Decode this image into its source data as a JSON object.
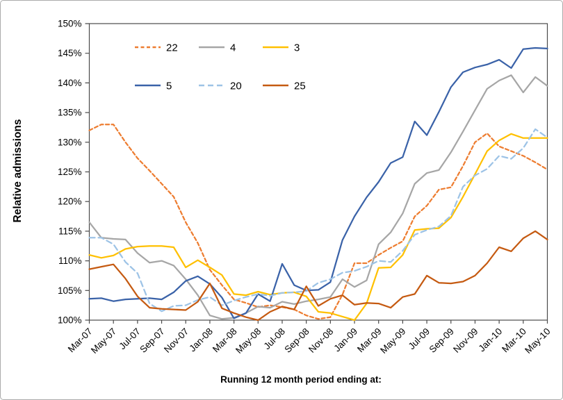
{
  "figure": {
    "background": "#FFFFFF",
    "border_color": "#AAAAAA",
    "axis_color": "#4A4A4A"
  },
  "chart_data": {
    "type": "line",
    "title": "",
    "xlabel": "Running 12 month period ending at:",
    "ylabel": "Relative admissions",
    "ylim": [
      100,
      150
    ],
    "y_tick_labels": [
      "100%",
      "105%",
      "110%",
      "115%",
      "120%",
      "125%",
      "130%",
      "135%",
      "140%",
      "145%",
      "150%"
    ],
    "x_label_every": 2,
    "grid": false,
    "legend_position": "inside-top-left",
    "legend_rows": [
      [
        "22",
        "4",
        "3"
      ],
      [
        "5",
        "20",
        "25"
      ]
    ],
    "categories": [
      "Mar-07",
      "Apr-07",
      "May-07",
      "Jun-07",
      "Jul-07",
      "Aug-07",
      "Sep-07",
      "Oct-07",
      "Nov-07",
      "Dec-07",
      "Jan-08",
      "Feb-08",
      "Mar-08",
      "Apr-08",
      "May-08",
      "Jun-08",
      "Jul-08",
      "Aug-08",
      "Sep-08",
      "Oct-08",
      "Nov-08",
      "Dec-08",
      "Jan-09",
      "Feb-09",
      "Mar-09",
      "Apr-09",
      "May-09",
      "Jun-09",
      "Jul-09",
      "Aug-09",
      "Sep-09",
      "Oct-09",
      "Nov-09",
      "Dec-09",
      "Jan-10",
      "Feb-10",
      "Mar-10",
      "Apr-10",
      "May-10"
    ],
    "series": [
      {
        "name": "22",
        "color": "#ED7D31",
        "dash": "5,3.5",
        "values": [
          132.0,
          133.0,
          133.0,
          130.0,
          127.3,
          125.2,
          123.0,
          120.8,
          116.5,
          113.0,
          108.5,
          105.9,
          103.5,
          102.9,
          102.2,
          102.5,
          102.2,
          101.8,
          100.8,
          100.2,
          100.5,
          104.3,
          109.6,
          109.6,
          111.0,
          112.2,
          113.3,
          117.5,
          119.3,
          122.0,
          122.4,
          126.0,
          130.0,
          131.5,
          129.3,
          128.5,
          127.7,
          126.6,
          125.4
        ]
      },
      {
        "name": "4",
        "color": "#A6A6A6",
        "dash": "",
        "values": [
          116.5,
          113.9,
          113.7,
          113.6,
          111.3,
          109.7,
          110.0,
          109.2,
          106.9,
          104.2,
          100.8,
          100.2,
          100.4,
          101.2,
          102.3,
          102.1,
          103.1,
          102.7,
          103.2,
          103.5,
          103.9,
          106.9,
          105.6,
          106.7,
          112.8,
          114.8,
          118.0,
          123.0,
          124.8,
          125.3,
          128.3,
          131.8,
          135.4,
          139.0,
          140.4,
          141.3,
          138.4,
          141.0,
          139.5
        ]
      },
      {
        "name": "3",
        "color": "#FFC000",
        "dash": "",
        "values": [
          111.0,
          110.5,
          110.9,
          112.0,
          112.4,
          112.5,
          112.5,
          112.3,
          108.9,
          110.1,
          108.9,
          107.6,
          104.4,
          104.2,
          104.8,
          104.3,
          104.6,
          104.7,
          104.0,
          101.4,
          101.2,
          100.6,
          100.0,
          102.8,
          108.8,
          108.9,
          111.0,
          115.2,
          115.4,
          115.5,
          117.3,
          120.8,
          124.6,
          128.5,
          130.3,
          131.4,
          130.7,
          130.7,
          130.7
        ]
      },
      {
        "name": "5",
        "color": "#3A62A8",
        "dash": "",
        "values": [
          103.6,
          103.7,
          103.2,
          103.5,
          103.6,
          103.7,
          103.5,
          104.7,
          106.6,
          107.4,
          106.1,
          103.8,
          100.3,
          101.2,
          104.4,
          103.2,
          109.5,
          105.9,
          105.0,
          105.1,
          106.4,
          113.5,
          117.5,
          120.7,
          123.3,
          126.5,
          127.5,
          133.5,
          131.2,
          135.1,
          139.3,
          141.8,
          142.6,
          143.1,
          143.9,
          142.5,
          145.7,
          145.9,
          145.8
        ]
      },
      {
        "name": "20",
        "color": "#9DC3E6",
        "dash": "8,5",
        "values": [
          113.9,
          113.9,
          112.8,
          109.8,
          107.9,
          102.8,
          101.5,
          102.4,
          102.5,
          103.4,
          103.9,
          102.5,
          103.3,
          103.9,
          104.4,
          104.1,
          104.6,
          104.7,
          104.9,
          106.3,
          106.9,
          108.0,
          108.3,
          109.0,
          110.0,
          109.8,
          111.7,
          114.4,
          115.2,
          115.8,
          117.6,
          122.5,
          124.4,
          125.5,
          127.7,
          127.2,
          129.0,
          132.2,
          130.8
        ]
      },
      {
        "name": "25",
        "color": "#C55A11",
        "dash": "",
        "values": [
          108.6,
          109.0,
          109.4,
          107.0,
          104.0,
          102.1,
          101.9,
          101.8,
          101.7,
          103.1,
          106.2,
          102.0,
          101.2,
          100.5,
          100.0,
          101.4,
          102.3,
          101.8,
          105.7,
          102.4,
          103.6,
          104.2,
          102.6,
          102.9,
          102.8,
          102.1,
          103.9,
          104.4,
          107.5,
          106.3,
          106.2,
          106.5,
          107.5,
          109.6,
          112.3,
          111.6,
          113.8,
          115.0,
          113.6
        ]
      }
    ]
  }
}
